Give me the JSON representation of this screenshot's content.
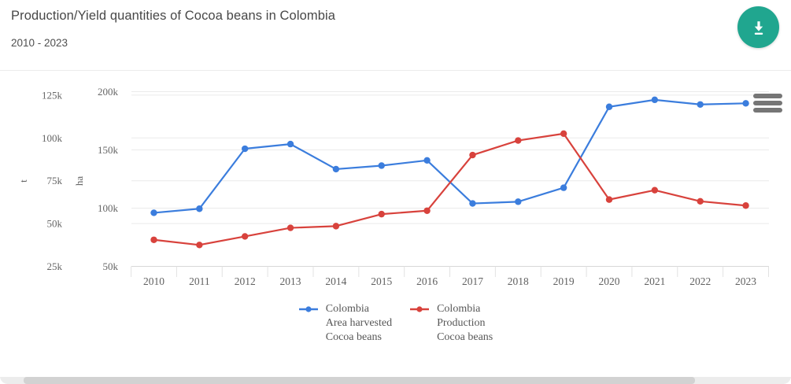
{
  "chart_data": {
    "type": "line",
    "title": "Production/Yield quantities of Cocoa beans in Colombia",
    "subtitle": "2010 - 2023",
    "x": [
      2010,
      2011,
      2012,
      2013,
      2014,
      2015,
      2016,
      2017,
      2018,
      2019,
      2020,
      2021,
      2022,
      2023
    ],
    "axes": {
      "left_t": {
        "label": "t",
        "tick_labels": [
          "25k",
          "50k",
          "75k",
          "100k",
          "125k"
        ],
        "tick_values": [
          25000,
          50000,
          75000,
          100000,
          125000
        ],
        "range": [
          25000,
          127500
        ]
      },
      "left_ha": {
        "label": "ha",
        "tick_labels": [
          "50k",
          "100k",
          "150k",
          "200k"
        ],
        "tick_values": [
          50000,
          100000,
          150000,
          200000
        ],
        "range": [
          50000,
          201000
        ]
      }
    },
    "series": [
      {
        "name": "Colombia Area harvested Cocoa beans",
        "legend_lines": [
          "Colombia",
          "Area harvested",
          "Cocoa beans"
        ],
        "axis": "left_ha",
        "unit": "ha",
        "color": "#3b7ddd",
        "values": [
          96000,
          99500,
          151000,
          155000,
          133500,
          136500,
          141000,
          104000,
          105500,
          117500,
          187000,
          193000,
          189000,
          190000
        ]
      },
      {
        "name": "Colombia Production Cocoa beans",
        "legend_lines": [
          "Colombia",
          "Production",
          "Cocoa beans"
        ],
        "axis": "left_t",
        "unit": "t",
        "color": "#d8423c",
        "values": [
          40500,
          37500,
          42500,
          47500,
          48500,
          55500,
          57500,
          90000,
          98500,
          102500,
          64000,
          69500,
          63000,
          60500
        ]
      }
    ],
    "grid": true,
    "legend_position": "bottom"
  },
  "header": {
    "download_button": "Download"
  },
  "colors": {
    "accent_teal": "#20a68f",
    "grid": "#eaeaea",
    "axis_line": "#d8d8d8",
    "tick_line": "#e2e2e2"
  }
}
